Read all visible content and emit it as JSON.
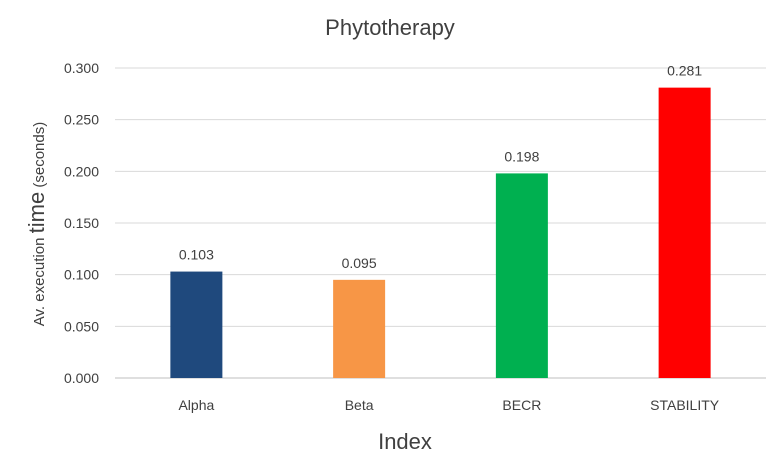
{
  "chart_data": {
    "type": "bar",
    "title": "Phytotherapy",
    "xlabel": "Index",
    "ylabel_prefix": "Av. execution ",
    "ylabel_main": "time",
    "ylabel_suffix": " (seconds)",
    "categories": [
      "Alpha",
      "Beta",
      "BECR",
      "STABILITY"
    ],
    "values": [
      0.103,
      0.095,
      0.198,
      0.281
    ],
    "value_labels": [
      "0.103",
      "0.095",
      "0.198",
      "0.281"
    ],
    "colors": [
      "#1f497d",
      "#f79646",
      "#00b050",
      "#ff0000"
    ],
    "yticks": [
      "0.000",
      "0.050",
      "0.100",
      "0.150",
      "0.200",
      "0.250",
      "0.300"
    ],
    "ylim": [
      0,
      0.3
    ],
    "grid": true,
    "legend": "none"
  }
}
